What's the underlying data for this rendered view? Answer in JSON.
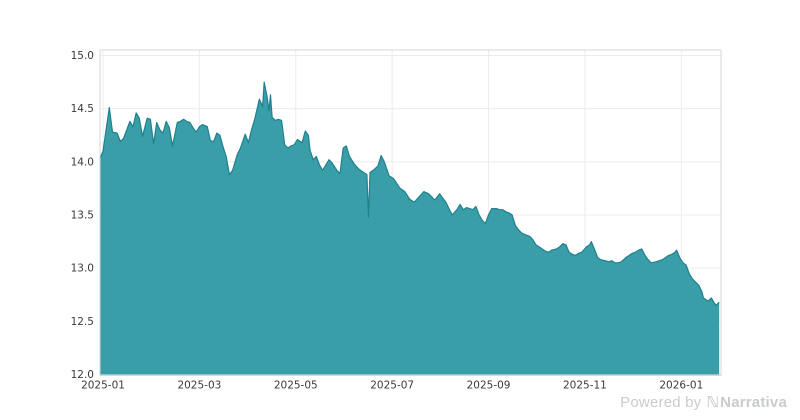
{
  "chart_data": {
    "type": "area",
    "title": "",
    "x_axis": {
      "label": "",
      "unit": "days since 2025-01-01",
      "grid": true,
      "ticks": [
        {
          "label": "2025-01",
          "d": 0
        },
        {
          "label": "2025-03",
          "d": 61
        },
        {
          "label": "2025-05",
          "d": 122
        },
        {
          "label": "2025-07",
          "d": 183
        },
        {
          "label": "2025-09",
          "d": 244
        },
        {
          "label": "2025-11",
          "d": 305
        },
        {
          "label": "2026-01",
          "d": 366
        }
      ]
    },
    "y_axis": {
      "label": "",
      "range": [
        12.0,
        15.0
      ],
      "tick_step": 0.5,
      "grid": true,
      "ticks": [
        {
          "label": "15.0",
          "v": 15.0
        },
        {
          "label": "14.5",
          "v": 14.5
        },
        {
          "label": "14.0",
          "v": 14.0
        },
        {
          "label": "13.5",
          "v": 13.5
        },
        {
          "label": "13.0",
          "v": 13.0
        },
        {
          "label": "12.5",
          "v": 12.5
        },
        {
          "label": "12.0",
          "v": 12.0
        }
      ]
    },
    "legend": "none",
    "series": [
      {
        "name": "value",
        "fill_color": "#2f99a4",
        "stroke_color": "#1f808e",
        "fill_opacity": 0.95,
        "points": [
          [
            -2,
            14.03
          ],
          [
            0,
            14.1
          ],
          [
            4,
            14.51
          ],
          [
            6,
            14.28
          ],
          [
            9,
            14.27
          ],
          [
            11,
            14.19
          ],
          [
            13,
            14.22
          ],
          [
            15,
            14.3
          ],
          [
            17,
            14.38
          ],
          [
            19,
            14.33
          ],
          [
            21,
            14.46
          ],
          [
            23,
            14.41
          ],
          [
            25,
            14.24
          ],
          [
            28,
            14.41
          ],
          [
            30,
            14.4
          ],
          [
            32,
            14.17
          ],
          [
            34,
            14.37
          ],
          [
            36,
            14.3
          ],
          [
            38,
            14.27
          ],
          [
            40,
            14.38
          ],
          [
            42,
            14.32
          ],
          [
            44,
            14.15
          ],
          [
            47,
            14.37
          ],
          [
            49,
            14.38
          ],
          [
            51,
            14.4
          ],
          [
            53,
            14.38
          ],
          [
            55,
            14.37
          ],
          [
            57,
            14.32
          ],
          [
            59,
            14.28
          ],
          [
            61,
            14.33
          ],
          [
            63,
            14.35
          ],
          [
            66,
            14.33
          ],
          [
            68,
            14.2
          ],
          [
            70,
            14.19
          ],
          [
            72,
            14.27
          ],
          [
            74,
            14.25
          ],
          [
            76,
            14.14
          ],
          [
            78,
            14.05
          ],
          [
            80,
            13.88
          ],
          [
            82,
            13.92
          ],
          [
            85,
            14.07
          ],
          [
            87,
            14.13
          ],
          [
            90,
            14.26
          ],
          [
            92,
            14.18
          ],
          [
            94,
            14.3
          ],
          [
            96,
            14.4
          ],
          [
            99,
            14.59
          ],
          [
            101,
            14.52
          ],
          [
            102,
            14.75
          ],
          [
            104,
            14.6
          ],
          [
            105,
            14.48
          ],
          [
            106,
            14.63
          ],
          [
            107,
            14.42
          ],
          [
            109,
            14.39
          ],
          [
            111,
            14.4
          ],
          [
            113,
            14.39
          ],
          [
            115,
            14.16
          ],
          [
            117,
            14.13
          ],
          [
            119,
            14.15
          ],
          [
            121,
            14.16
          ],
          [
            123,
            14.21
          ],
          [
            126,
            14.18
          ],
          [
            128,
            14.29
          ],
          [
            130,
            14.25
          ],
          [
            131,
            14.11
          ],
          [
            133,
            14.02
          ],
          [
            135,
            14.05
          ],
          [
            137,
            13.97
          ],
          [
            139,
            13.92
          ],
          [
            141,
            13.97
          ],
          [
            143,
            14.02
          ],
          [
            145,
            13.99
          ],
          [
            148,
            13.92
          ],
          [
            150,
            13.89
          ],
          [
            152,
            14.13
          ],
          [
            154,
            14.15
          ],
          [
            156,
            14.05
          ],
          [
            159,
            13.98
          ],
          [
            162,
            13.93
          ],
          [
            165,
            13.9
          ],
          [
            167,
            13.88
          ],
          [
            168,
            13.48
          ],
          [
            169,
            13.9
          ],
          [
            171,
            13.92
          ],
          [
            174,
            13.96
          ],
          [
            176,
            14.06
          ],
          [
            178,
            14.0
          ],
          [
            181,
            13.87
          ],
          [
            184,
            13.84
          ],
          [
            188,
            13.75
          ],
          [
            191,
            13.72
          ],
          [
            194,
            13.65
          ],
          [
            197,
            13.62
          ],
          [
            200,
            13.67
          ],
          [
            203,
            13.72
          ],
          [
            206,
            13.7
          ],
          [
            210,
            13.64
          ],
          [
            213,
            13.7
          ],
          [
            215,
            13.66
          ],
          [
            217,
            13.62
          ],
          [
            219,
            13.56
          ],
          [
            221,
            13.5
          ],
          [
            224,
            13.55
          ],
          [
            226,
            13.6
          ],
          [
            228,
            13.55
          ],
          [
            230,
            13.57
          ],
          [
            232,
            13.56
          ],
          [
            234,
            13.55
          ],
          [
            236,
            13.58
          ],
          [
            238,
            13.5
          ],
          [
            240,
            13.45
          ],
          [
            242,
            13.42
          ],
          [
            244,
            13.5
          ],
          [
            246,
            13.56
          ],
          [
            249,
            13.56
          ],
          [
            251,
            13.55
          ],
          [
            253,
            13.55
          ],
          [
            255,
            13.53
          ],
          [
            257,
            13.52
          ],
          [
            259,
            13.5
          ],
          [
            261,
            13.4
          ],
          [
            263,
            13.36
          ],
          [
            265,
            13.33
          ],
          [
            268,
            13.31
          ],
          [
            270,
            13.3
          ],
          [
            272,
            13.27
          ],
          [
            274,
            13.22
          ],
          [
            276,
            13.2
          ],
          [
            278,
            13.18
          ],
          [
            280,
            13.16
          ],
          [
            282,
            13.15
          ],
          [
            284,
            13.17
          ],
          [
            287,
            13.18
          ],
          [
            289,
            13.2
          ],
          [
            291,
            13.23
          ],
          [
            293,
            13.22
          ],
          [
            295,
            13.15
          ],
          [
            297,
            13.13
          ],
          [
            299,
            13.12
          ],
          [
            301,
            13.14
          ],
          [
            303,
            13.15
          ],
          [
            306,
            13.2
          ],
          [
            308,
            13.22
          ],
          [
            309,
            13.25
          ],
          [
            311,
            13.18
          ],
          [
            313,
            13.1
          ],
          [
            315,
            13.08
          ],
          [
            318,
            13.07
          ],
          [
            320,
            13.06
          ],
          [
            322,
            13.07
          ],
          [
            324,
            13.05
          ],
          [
            326,
            13.05
          ],
          [
            328,
            13.06
          ],
          [
            331,
            13.1
          ],
          [
            333,
            13.12
          ],
          [
            335,
            13.14
          ],
          [
            337,
            13.15
          ],
          [
            339,
            13.17
          ],
          [
            341,
            13.18
          ],
          [
            343,
            13.12
          ],
          [
            345,
            13.08
          ],
          [
            347,
            13.05
          ],
          [
            350,
            13.06
          ],
          [
            352,
            13.07
          ],
          [
            354,
            13.08
          ],
          [
            356,
            13.1
          ],
          [
            358,
            13.12
          ],
          [
            360,
            13.13
          ],
          [
            362,
            13.15
          ],
          [
            363,
            13.17
          ],
          [
            365,
            13.1
          ],
          [
            367,
            13.05
          ],
          [
            369,
            13.03
          ],
          [
            371,
            12.95
          ],
          [
            373,
            12.9
          ],
          [
            375,
            12.87
          ],
          [
            377,
            12.84
          ],
          [
            379,
            12.78
          ],
          [
            380,
            12.72
          ],
          [
            382,
            12.7
          ],
          [
            383,
            12.69
          ],
          [
            385,
            12.72
          ],
          [
            387,
            12.67
          ],
          [
            388,
            12.65
          ],
          [
            390,
            12.68
          ]
        ]
      }
    ]
  },
  "watermark": {
    "powered_by": "Powered by",
    "logo_glyph": "ℕ",
    "brand": "Narrativa",
    "color": "#c9cbcc"
  },
  "colors": {
    "background": "#ffffff",
    "grid": "#ececec",
    "frame": "#d7d7d7",
    "tick_text": "#3b3b3b"
  }
}
